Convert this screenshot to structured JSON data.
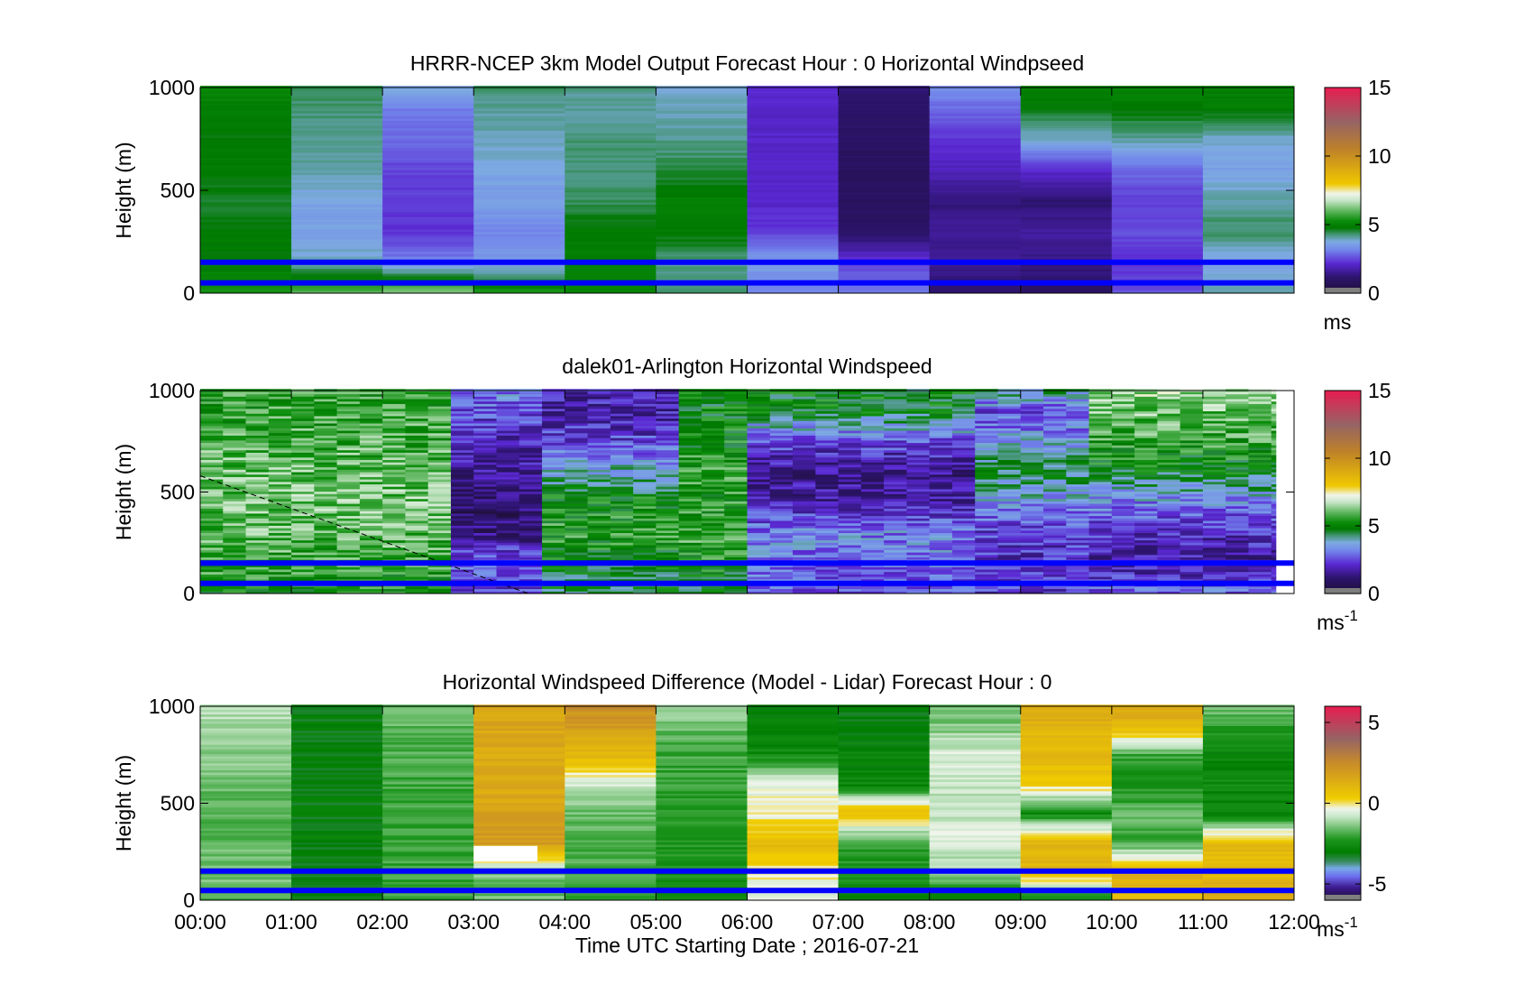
{
  "chart_data": [
    {
      "type": "heatmap",
      "title": "HRRR-NCEP 3km Model Output   Forecast Hour : 0 Horizontal Windpseed",
      "ylabel": "Height (m)",
      "xlabel": "",
      "ylim": [
        0,
        1000
      ],
      "yticks": [
        "0",
        "500",
        "1000"
      ],
      "xticklabels": [],
      "colorbar": {
        "min": 0,
        "max": 15,
        "ticks": [
          "0",
          "5",
          "10",
          "15"
        ],
        "unit": "ms",
        "unit_sup": "",
        "palette": "windspeed"
      },
      "time_columns": [
        "00:00",
        "01:00",
        "02:00",
        "03:00",
        "04:00",
        "05:00",
        "06:00",
        "07:00",
        "08:00",
        "09:00",
        "10:00",
        "11:00"
      ],
      "heights_m": [
        0,
        150,
        300,
        450,
        600,
        750,
        900,
        1000
      ],
      "values_by_height": [
        [
          5.5,
          6.0,
          6.5,
          5.5,
          5.2,
          4.4,
          3.2,
          3.2,
          1.2,
          1.0,
          2.7,
          4.0
        ],
        [
          4.8,
          4.0,
          3.2,
          3.5,
          5.0,
          4.2,
          3.6,
          2.4,
          1.5,
          1.4,
          2.2,
          3.6
        ],
        [
          4.9,
          3.6,
          2.3,
          3.2,
          4.9,
          4.9,
          2.4,
          1.0,
          1.6,
          1.7,
          2.6,
          4.4
        ],
        [
          4.6,
          3.7,
          2.4,
          3.6,
          4.4,
          5.0,
          2.1,
          0.9,
          1.3,
          1.2,
          2.4,
          4.1
        ],
        [
          4.9,
          4.1,
          2.5,
          3.7,
          4.3,
          4.5,
          2.1,
          0.9,
          2.0,
          2.2,
          2.9,
          3.6
        ],
        [
          4.8,
          4.2,
          2.9,
          4.0,
          4.3,
          4.2,
          2.1,
          1.0,
          2.3,
          3.9,
          4.1,
          3.9
        ],
        [
          5.0,
          4.3,
          3.1,
          4.1,
          4.1,
          4.0,
          2.1,
          1.1,
          2.9,
          4.8,
          4.9,
          4.9
        ],
        [
          5.2,
          4.5,
          3.8,
          4.4,
          4.2,
          3.8,
          2.3,
          1.2,
          3.3,
          5.0,
          5.0,
          5.0
        ]
      ],
      "reference_lines_m": [
        50,
        150
      ]
    },
    {
      "type": "heatmap",
      "title": "dalek01-Arlington  Horizontal Windspeed",
      "ylabel": "Height (m)",
      "xlabel": "",
      "ylim": [
        0,
        1000
      ],
      "yticks": [
        "0",
        "500",
        "1000"
      ],
      "xticklabels": [],
      "colorbar": {
        "min": 0,
        "max": 15,
        "ticks": [
          "0",
          "5",
          "10",
          "15"
        ],
        "unit": "ms",
        "unit_sup": "-1",
        "palette": "windspeed"
      },
      "time_range_hours": [
        0,
        11.8
      ],
      "heights_m": [
        0,
        150,
        300,
        450,
        600,
        750,
        900,
        1000
      ],
      "profile_groups": [
        {
          "until_hour": 2.6,
          "values": [
            5.3,
            5.6,
            6.0,
            6.2,
            6.0,
            5.8,
            5.6,
            5.5
          ]
        },
        {
          "until_hour": 3.7,
          "values": [
            2.3,
            3.0,
            1.2,
            1.0,
            1.6,
            2.0,
            2.6,
            3.2
          ]
        },
        {
          "until_hour": 5.1,
          "values": [
            4.5,
            5.0,
            5.5,
            5.2,
            4.0,
            2.5,
            1.8,
            2.0
          ]
        },
        {
          "until_hour": 6.0,
          "values": [
            4.6,
            5.2,
            5.8,
            5.4,
            5.6,
            5.2,
            5.0,
            5.0
          ]
        },
        {
          "until_hour": 8.4,
          "values": [
            2.6,
            3.0,
            3.2,
            1.8,
            1.4,
            2.6,
            4.8,
            5.0
          ]
        },
        {
          "until_hour": 9.7,
          "values": [
            2.4,
            2.2,
            2.4,
            3.4,
            4.6,
            3.5,
            2.6,
            4.2
          ]
        },
        {
          "until_hour": 11.8,
          "values": [
            3.0,
            1.6,
            2.2,
            3.2,
            4.8,
            5.6,
            6.2,
            6.6
          ]
        }
      ],
      "reference_lines_m": [
        50,
        150
      ],
      "dashed_line": {
        "from": [
          0,
          580
        ],
        "to": [
          3.6,
          0
        ]
      }
    },
    {
      "type": "heatmap",
      "title": "Horizontal Windspeed Difference (Model - Lidar) Forecast Hour : 0",
      "ylabel": "Height (m)",
      "xlabel": "Time UTC  Starting Date ; 2016-07-21",
      "ylim": [
        0,
        1000
      ],
      "yticks": [
        "0",
        "500",
        "1000"
      ],
      "xticklabels": [
        "00:00",
        "01:00",
        "02:00",
        "03:00",
        "04:00",
        "05:00",
        "06:00",
        "07:00",
        "08:00",
        "09:00",
        "10:00",
        "11:00",
        "12:00"
      ],
      "colorbar": {
        "min": -6,
        "max": 6,
        "ticks": [
          "-5",
          "0",
          "5"
        ],
        "unit": "ms",
        "unit_sup": "-1",
        "palette": "difference"
      },
      "time_columns": [
        "00:00",
        "01:00",
        "02:00",
        "03:00",
        "04:00",
        "05:00",
        "06:00",
        "07:00",
        "08:00",
        "09:00",
        "10:00",
        "11:00"
      ],
      "heights_m": [
        0,
        150,
        300,
        450,
        600,
        750,
        900,
        1000
      ],
      "values_by_height": [
        [
          -1.6,
          -3.0,
          -2.0,
          -1.6,
          -2.0,
          -2.4,
          -0.4,
          -2.6,
          -3.0,
          -2.6,
          1.0,
          1.2
        ],
        [
          -1.5,
          -3.0,
          -2.0,
          -1.4,
          -1.8,
          -2.4,
          -0.2,
          -2.4,
          -1.2,
          1.0,
          1.2,
          1.0
        ],
        [
          -1.6,
          -3.0,
          -2.0,
          2.0,
          -1.8,
          -2.3,
          0.9,
          -2.0,
          -0.5,
          1.2,
          -2.0,
          0.9
        ],
        [
          -1.7,
          -3.0,
          -2.0,
          1.8,
          -1.6,
          -2.2,
          -0.3,
          0.8,
          -0.9,
          -2.6,
          -1.6,
          -2.8
        ],
        [
          -1.6,
          -3.0,
          -1.9,
          1.4,
          -0.6,
          -2.1,
          -0.4,
          -2.8,
          -0.7,
          0.4,
          -2.4,
          -2.6
        ],
        [
          -1.3,
          -3.0,
          -1.8,
          1.5,
          1.0,
          -1.9,
          -2.6,
          -2.8,
          -0.6,
          1.0,
          -2.0,
          -2.8
        ],
        [
          -1.0,
          -3.0,
          -1.7,
          1.6,
          2.0,
          -1.5,
          -2.8,
          -3.0,
          -1.4,
          1.2,
          1.2,
          -2.2
        ],
        [
          -0.8,
          -3.0,
          -1.6,
          1.6,
          2.4,
          -1.2,
          -2.8,
          -3.2,
          -1.6,
          1.4,
          1.3,
          -1.4
        ]
      ],
      "reference_lines_m": [
        50,
        150
      ],
      "blank_region": {
        "from_hour": 3,
        "to_hour": 3.7,
        "from_m": 200,
        "to_m": 280
      }
    }
  ]
}
